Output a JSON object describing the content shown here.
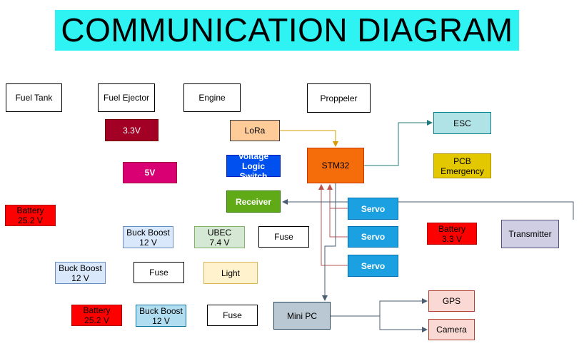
{
  "title": "COMMUNICATION DIAGRAM",
  "nodes": {
    "fuel_tank": {
      "label": "Fuel Tank"
    },
    "fuel_ejector": {
      "label": "Fuel Ejector"
    },
    "engine": {
      "label": "Engine"
    },
    "proppeler": {
      "label": "Proppeler"
    },
    "esc": {
      "label": "ESC"
    },
    "lora": {
      "label": "LoRa"
    },
    "v33": {
      "label": "3.3V"
    },
    "stm32": {
      "label": "STM32"
    },
    "voltage_logic_switch": {
      "label": "Voltage Logic\nSwitch"
    },
    "v5": {
      "label": "5V"
    },
    "pcb_emergency": {
      "label": "PCB\nEmergency"
    },
    "receiver": {
      "label": "Receiver"
    },
    "servo_1": {
      "label": "Servo"
    },
    "servo_2": {
      "label": "Servo"
    },
    "servo_3": {
      "label": "Servo"
    },
    "battery_25_2_a": {
      "label": "Battery\n25.2 V"
    },
    "battery_3_3": {
      "label": "Battery\n3.3 V"
    },
    "transmitter": {
      "label": "Transmitter"
    },
    "buck_boost_1": {
      "label": "Buck Boost\n12 V"
    },
    "ubec": {
      "label": "UBEC\n7.4 V"
    },
    "fuse_1": {
      "label": "Fuse"
    },
    "buck_boost_2": {
      "label": "Buck Boost\n12 V"
    },
    "fuse_2": {
      "label": "Fuse"
    },
    "light": {
      "label": "Light"
    },
    "mini_pc": {
      "label": "Mini PC"
    },
    "gps": {
      "label": "GPS"
    },
    "battery_25_2_b": {
      "label": "Battery\n25.2 V"
    },
    "buck_boost_3": {
      "label": "Buck Boost\n12 V"
    },
    "fuse_3": {
      "label": "Fuse"
    },
    "camera": {
      "label": "Camera"
    }
  },
  "colors": {
    "title_bg": "#2ff3f3",
    "stm32": "#f56c0a",
    "lora": "#ffcc99",
    "esc": "#b0e3e6",
    "v33": "#a20025",
    "v5": "#d80073",
    "voltage_logic_switch": "#0050ef",
    "pcb_emergency": "#e3c800",
    "receiver": "#60a917",
    "servo": "#1ba1e2",
    "battery": "#ff0000",
    "transmitter": "#d0cee2",
    "buck_boost": "#dae8fc",
    "ubec": "#d5e8d4",
    "light": "#fff2cc",
    "mini_pc": "#bac8d3",
    "gps": "#fad9d5",
    "camera": "#fad9d5",
    "buck_boost_blue": "#b1ddf0",
    "arrow_teal": "#207a7a",
    "arrow_gold": "#d79b00",
    "arrow_red": "#b85450",
    "arrow_slate": "#4a5d73"
  }
}
